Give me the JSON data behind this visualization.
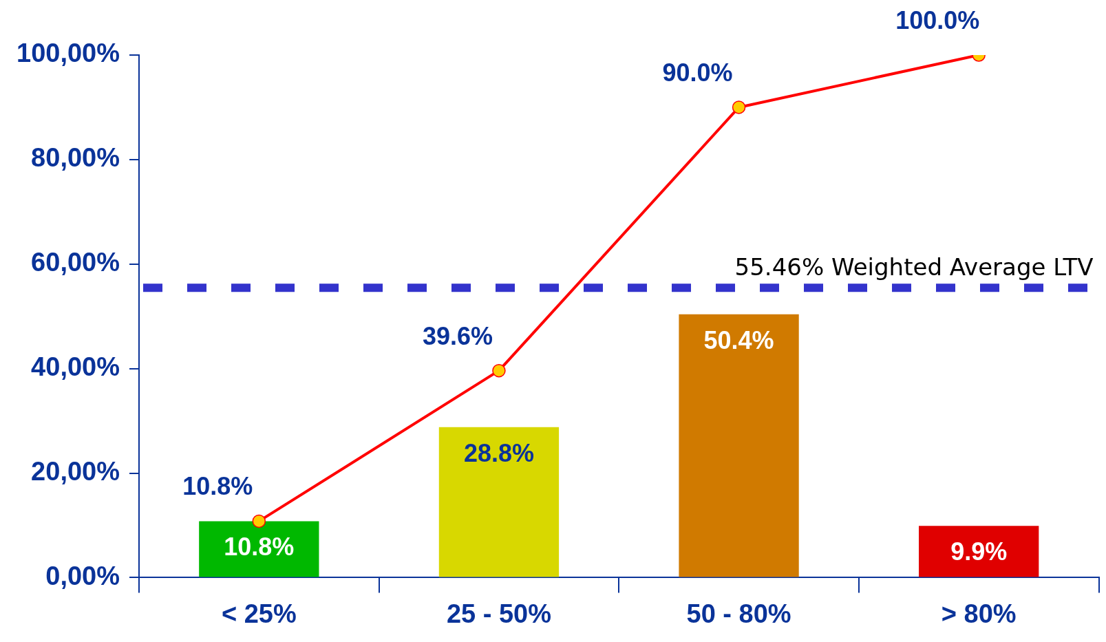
{
  "chart_data": {
    "type": "bar",
    "categories": [
      "< 25%",
      "25 - 50%",
      "50 - 80%",
      "> 80%"
    ],
    "series": [
      {
        "colors": [
          "#00b800",
          "#d8d800",
          "#d07a00",
          "#e00000"
        ],
        "values": [
          10.8,
          28.8,
          50.4,
          9.9
        ],
        "value_labels": [
          "10.8%",
          "28.8%",
          "50.4%",
          "9.9%"
        ]
      },
      {
        "type": "line",
        "color": "#ff0000",
        "values": [
          10.8,
          39.6,
          90.0,
          100.0
        ],
        "value_labels": [
          "10.8%",
          "39.6%",
          "90.0%",
          "100.0%"
        ],
        "marker": "circle"
      }
    ],
    "ylim": [
      0,
      100
    ],
    "yticks": [
      {
        "value": 0,
        "label": "0,00%"
      },
      {
        "value": 20,
        "label": "20,00%"
      },
      {
        "value": 40,
        "label": "40,00%"
      },
      {
        "value": 60,
        "label": "60,00%"
      },
      {
        "value": 80,
        "label": "80,00%"
      },
      {
        "value": 100,
        "label": "100,00%"
      }
    ],
    "ref_lines": [
      {
        "axis": "y",
        "value": 55.46,
        "label": "55.46% Weighted Average LTV",
        "color": "#3333cc",
        "line_style": "dashed"
      }
    ],
    "grid": false,
    "legend": false
  }
}
